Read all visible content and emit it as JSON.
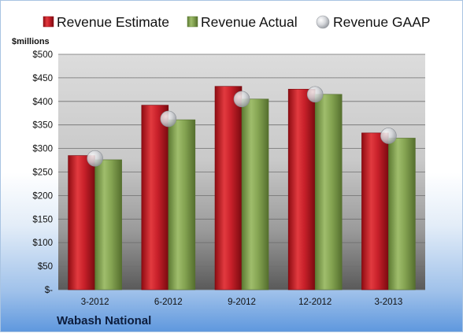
{
  "chart_data": {
    "type": "bar",
    "categories": [
      "3-2012",
      "6-2012",
      "9-2012",
      "12-2012",
      "3-2013"
    ],
    "series": [
      {
        "name": "Revenue Estimate",
        "values": [
          285,
          392,
          432,
          426,
          333
        ],
        "color": "#c8202a",
        "marker": "bar"
      },
      {
        "name": "Revenue Actual",
        "values": [
          276,
          361,
          405,
          415,
          322
        ],
        "color": "#7f9e4c",
        "marker": "bar"
      },
      {
        "name": "Revenue GAAP",
        "values": [
          279,
          363,
          405,
          415,
          327
        ],
        "color": "#c9cdd3",
        "marker": "bubble"
      }
    ],
    "yunit": "$millions",
    "ylim": [
      0,
      500
    ],
    "yticks": [
      0,
      50,
      100,
      150,
      200,
      250,
      300,
      350,
      400,
      450,
      500
    ],
    "ytick_labels": [
      "$-",
      "$50",
      "$100",
      "$150",
      "$200",
      "$250",
      "$300",
      "$350",
      "$400",
      "$450",
      "$500"
    ],
    "grid": true,
    "legend_position": "top",
    "company": "Wabash National"
  }
}
